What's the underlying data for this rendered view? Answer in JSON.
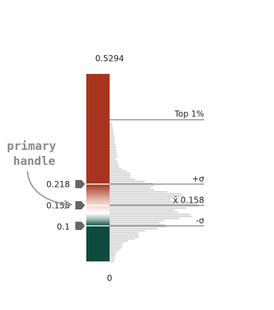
{
  "scale": {
    "max_label": "0.5294",
    "min_label": "0"
  },
  "handles": [
    "0.218",
    "0.158",
    "0.1"
  ],
  "markers": {
    "top": "Top 1%",
    "plus_sigma": "+σ",
    "mean": "x̄ 0.158",
    "minus_sigma": "-σ"
  },
  "annotation": [
    "primary",
    "handle"
  ]
}
